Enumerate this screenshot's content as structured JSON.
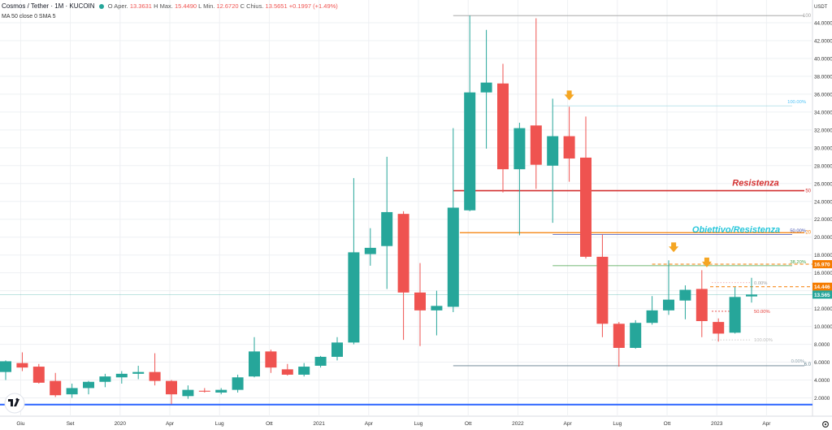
{
  "header": {
    "symbol": "Cosmos / Tether · 1M · KUCOIN",
    "open_label": "O",
    "open_text": "Aper.",
    "open": "13.3631",
    "high_label": "H",
    "high_text": "Max.",
    "high": "15.4490",
    "low_label": "L",
    "low_text": "Min.",
    "low": "12.6720",
    "close_label": "C",
    "close_text": "Chius.",
    "close": "13.5651",
    "change": "+0.1997 (+1.49%)",
    "indicator": "MA 50 close 0 SMA 5"
  },
  "colors": {
    "up": "#26a69a",
    "down": "#ef5350",
    "resistance": "#d32f2f",
    "target": "#26c6da",
    "orange": "#f57c00",
    "arrow": "#f5a623",
    "blue_line": "#2962ff",
    "price_tag": "#26a69a",
    "grid": "#eef0f3"
  },
  "chart_data": {
    "type": "candlestick",
    "y_unit": "USDT",
    "ylim": [
      0.5,
      46
    ],
    "y_ticks": [
      "2.0000",
      "4.0000",
      "6.0000",
      "8.0000",
      "10.0000",
      "12.0000",
      "14.0000",
      "16.0000",
      "18.0000",
      "20.0000",
      "22.0000",
      "24.0000",
      "26.0000",
      "28.0000",
      "30.0000",
      "32.0000",
      "34.0000",
      "36.0000",
      "38.0000",
      "40.0000",
      "42.0000",
      "44.0000"
    ],
    "x_ticks": [
      "Giu",
      "Set",
      "2020",
      "Apr",
      "Lug",
      "Ott",
      "2021",
      "Apr",
      "Lug",
      "Ott",
      "2022",
      "Apr",
      "Lug",
      "Ott",
      "2023",
      "Apr"
    ],
    "candles": [
      {
        "o": 4.9,
        "h": 6.2,
        "l": 4.0,
        "c": 6.1
      },
      {
        "o": 5.9,
        "h": 7.1,
        "l": 5.0,
        "c": 5.4
      },
      {
        "o": 5.5,
        "h": 5.8,
        "l": 3.6,
        "c": 3.7
      },
      {
        "o": 3.9,
        "h": 4.8,
        "l": 2.1,
        "c": 2.3
      },
      {
        "o": 2.4,
        "h": 3.6,
        "l": 2.0,
        "c": 3.1
      },
      {
        "o": 3.1,
        "h": 3.9,
        "l": 2.4,
        "c": 3.8
      },
      {
        "o": 3.8,
        "h": 4.7,
        "l": 3.2,
        "c": 4.4
      },
      {
        "o": 4.3,
        "h": 5.0,
        "l": 3.6,
        "c": 4.7
      },
      {
        "o": 4.7,
        "h": 5.6,
        "l": 4.1,
        "c": 4.9
      },
      {
        "o": 4.9,
        "h": 7.0,
        "l": 3.4,
        "c": 3.9
      },
      {
        "o": 3.9,
        "h": 4.0,
        "l": 1.3,
        "c": 2.4
      },
      {
        "o": 2.2,
        "h": 3.4,
        "l": 1.9,
        "c": 2.9
      },
      {
        "o": 2.8,
        "h": 3.1,
        "l": 2.6,
        "c": 2.7
      },
      {
        "o": 2.6,
        "h": 3.1,
        "l": 2.4,
        "c": 2.9
      },
      {
        "o": 2.9,
        "h": 4.6,
        "l": 2.6,
        "c": 4.3
      },
      {
        "o": 4.4,
        "h": 8.8,
        "l": 4.3,
        "c": 7.2
      },
      {
        "o": 7.2,
        "h": 7.4,
        "l": 4.8,
        "c": 5.4
      },
      {
        "o": 5.2,
        "h": 5.8,
        "l": 4.5,
        "c": 4.6
      },
      {
        "o": 4.6,
        "h": 5.9,
        "l": 4.4,
        "c": 5.5
      },
      {
        "o": 5.6,
        "h": 6.7,
        "l": 5.4,
        "c": 6.6
      },
      {
        "o": 6.6,
        "h": 8.8,
        "l": 6.2,
        "c": 8.2
      },
      {
        "o": 8.2,
        "h": 26.6,
        "l": 8.0,
        "c": 18.3
      },
      {
        "o": 18.1,
        "h": 21.0,
        "l": 16.8,
        "c": 18.8
      },
      {
        "o": 19.0,
        "h": 29.0,
        "l": 14.2,
        "c": 22.8
      },
      {
        "o": 22.6,
        "h": 22.9,
        "l": 8.5,
        "c": 13.8
      },
      {
        "o": 13.8,
        "h": 17.1,
        "l": 7.8,
        "c": 11.8
      },
      {
        "o": 11.8,
        "h": 14.0,
        "l": 9.0,
        "c": 12.3
      },
      {
        "o": 12.2,
        "h": 32.2,
        "l": 11.6,
        "c": 23.3
      },
      {
        "o": 23.0,
        "h": 44.8,
        "l": 22.9,
        "c": 36.2
      },
      {
        "o": 36.2,
        "h": 43.2,
        "l": 29.9,
        "c": 37.3
      },
      {
        "o": 37.2,
        "h": 39.4,
        "l": 25.0,
        "c": 27.6
      },
      {
        "o": 27.6,
        "h": 32.8,
        "l": 20.2,
        "c": 32.2
      },
      {
        "o": 32.5,
        "h": 44.5,
        "l": 25.4,
        "c": 28.1
      },
      {
        "o": 28.0,
        "h": 35.5,
        "l": 21.6,
        "c": 31.3
      },
      {
        "o": 31.3,
        "h": 34.6,
        "l": 26.2,
        "c": 28.8
      },
      {
        "o": 28.9,
        "h": 33.5,
        "l": 17.6,
        "c": 17.8
      },
      {
        "o": 17.8,
        "h": 20.3,
        "l": 8.8,
        "c": 10.3
      },
      {
        "o": 10.3,
        "h": 10.5,
        "l": 5.5,
        "c": 7.6
      },
      {
        "o": 7.6,
        "h": 10.7,
        "l": 7.5,
        "c": 10.4
      },
      {
        "o": 10.4,
        "h": 13.4,
        "l": 10.2,
        "c": 11.8
      },
      {
        "o": 11.8,
        "h": 17.4,
        "l": 11.3,
        "c": 13.0
      },
      {
        "o": 12.9,
        "h": 14.6,
        "l": 10.8,
        "c": 14.1
      },
      {
        "o": 14.2,
        "h": 16.3,
        "l": 8.8,
        "c": 10.6
      },
      {
        "o": 10.5,
        "h": 10.9,
        "l": 8.3,
        "c": 9.2
      },
      {
        "o": 9.3,
        "h": 14.4,
        "l": 9.2,
        "c": 13.3
      },
      {
        "o": 13.36,
        "h": 15.45,
        "l": 12.67,
        "c": 13.57
      }
    ],
    "levels": {
      "top_level": 44.8,
      "resistance": 25.2,
      "target_resistance": 20.5,
      "support_bottom": 5.6,
      "blue_floor": 1.25
    },
    "annotations": {
      "resistance_text": "Resistenza",
      "target_text": "Obiettivo/Resistenza",
      "fib_left": [
        {
          "label": "100.00%",
          "value": 34.7
        },
        {
          "label": "50.00%",
          "value": 20.3
        },
        {
          "label": "38.20%",
          "value": 16.8
        },
        {
          "label": "0.00%",
          "value": 5.8
        }
      ],
      "fib_right": [
        {
          "label": "0.00%",
          "value": 14.9
        },
        {
          "label": "50.00%",
          "value": 11.7
        },
        {
          "label": "100.00%",
          "value": 8.5
        }
      ],
      "right_edge": [
        {
          "label": "100",
          "value": 44.8
        },
        {
          "label": "50",
          "value": 25.2
        },
        {
          "label": "20",
          "value": 20.55
        },
        {
          "label": "6.0",
          "value": 5.8
        }
      ],
      "price_tags": [
        {
          "label": "16.970",
          "value": 16.97,
          "color": "#f57c00"
        },
        {
          "label": "14.446",
          "value": 14.446,
          "color": "#f57c00"
        },
        {
          "label": "13.565",
          "value": 13.565,
          "color": "#26a69a"
        }
      ]
    }
  }
}
